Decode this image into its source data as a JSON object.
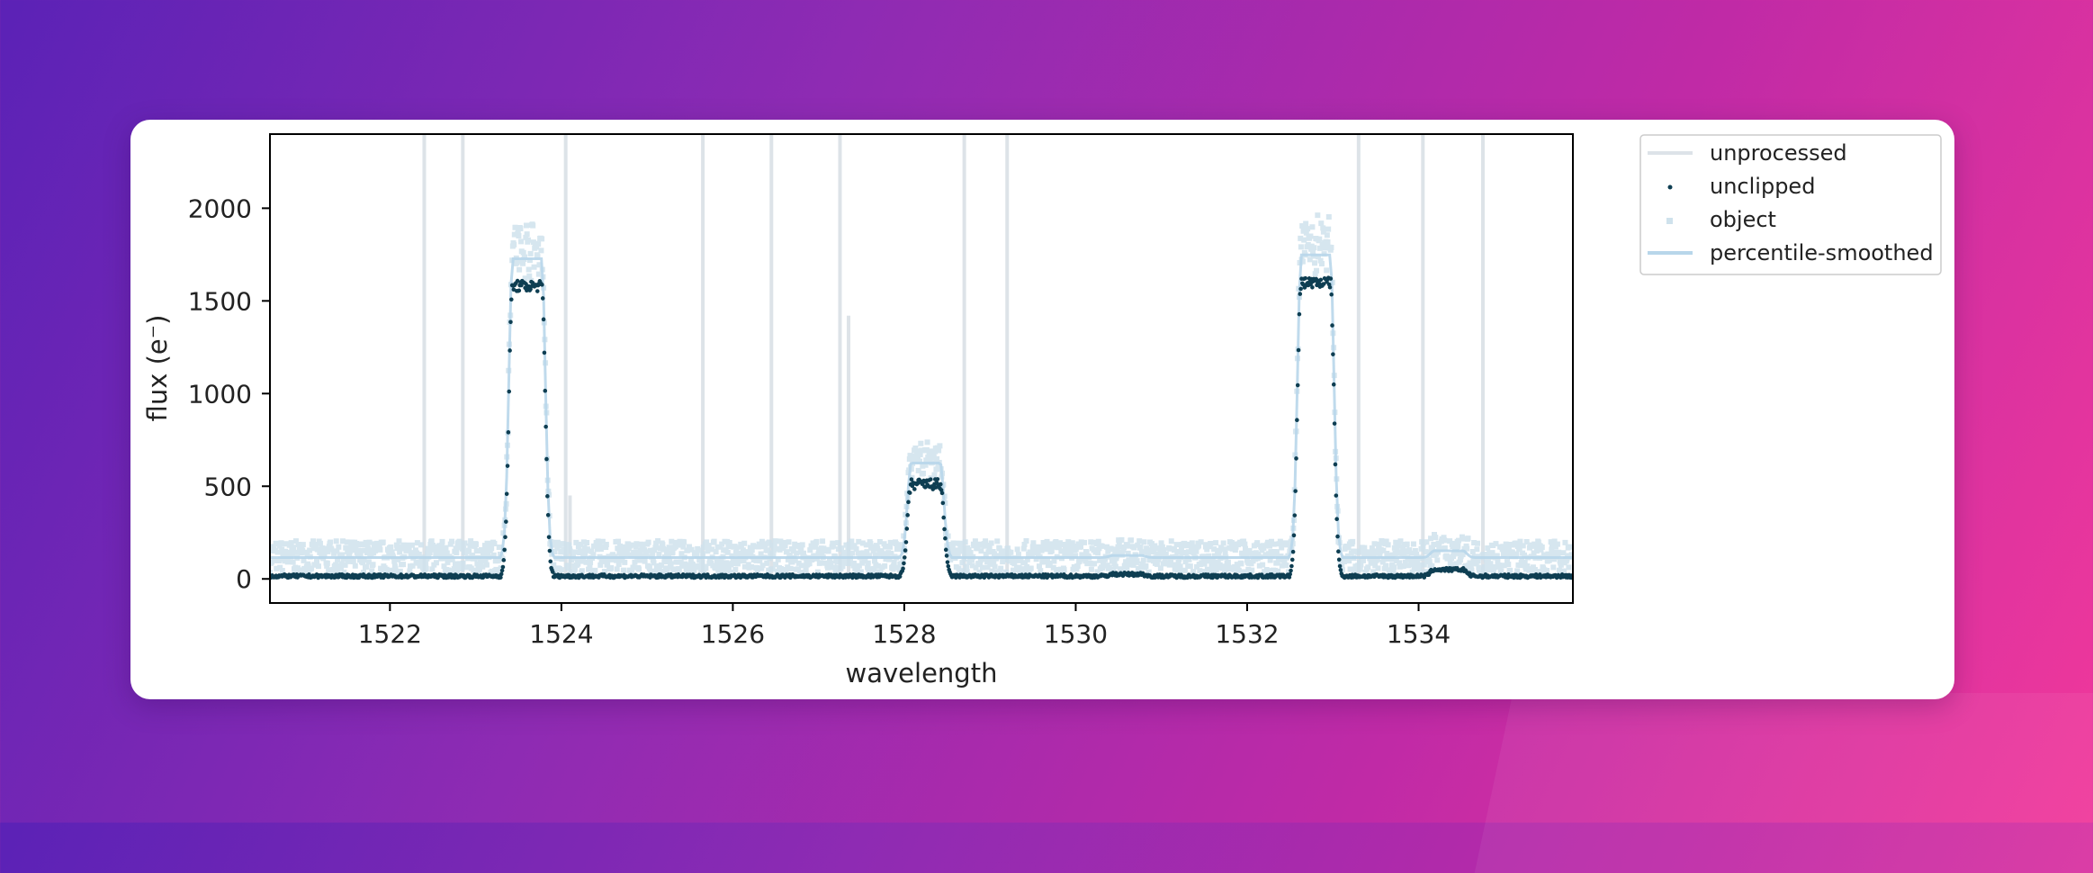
{
  "chart_data": {
    "type": "scatter",
    "xlabel": "wavelength",
    "ylabel": "flux (e⁻)",
    "xlim": [
      1520.6,
      1535.8
    ],
    "ylim": [
      -130,
      2400
    ],
    "x_ticks": [
      1522,
      1524,
      1526,
      1528,
      1530,
      1532,
      1534
    ],
    "y_ticks": [
      0,
      500,
      1000,
      1500,
      2000
    ],
    "grid": false,
    "legend_position": "outside top-right",
    "legend": [
      "unprocessed",
      "unclipped",
      "object",
      "percentile-smoothed"
    ],
    "series": [
      {
        "name": "unprocessed",
        "style": "line",
        "color": "#dde3e8",
        "spikes_x": [
          1522.4,
          1522.85,
          1524.05,
          1525.65,
          1526.45,
          1527.25,
          1528.7,
          1529.2,
          1533.3,
          1534.05,
          1534.75
        ]
      },
      {
        "name": "unclipped",
        "style": "points",
        "color": "#0e3e52",
        "peaks": [
          {
            "center": 1523.6,
            "peak": 1580
          },
          {
            "center": 1528.25,
            "peak": 510
          },
          {
            "center": 1532.8,
            "peak": 1600
          },
          {
            "center": 1534.35,
            "peak": 50
          },
          {
            "center": 1530.6,
            "peak": 25
          }
        ],
        "baseline": 15
      },
      {
        "name": "object",
        "style": "points",
        "color": "#cfe2ec",
        "baseline_band": [
          20,
          190
        ]
      },
      {
        "name": "percentile-smoothed",
        "style": "line",
        "color": "#b8d6ea"
      }
    ]
  },
  "colors": {
    "unprocessed": "#dde3e8",
    "unclipped": "#0e3e52",
    "object": "#cfe2ec",
    "smoothed": "#b8d6ea"
  }
}
